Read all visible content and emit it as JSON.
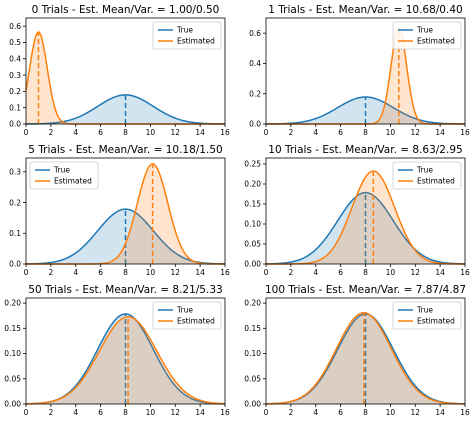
{
  "chart_data": [
    {
      "type": "area",
      "title": "0 Trials - Est. Mean/Var. = 1.00/0.50",
      "xlim": [
        0,
        16
      ],
      "ylim": [
        0,
        0.65
      ],
      "xticks": [
        0,
        2,
        4,
        6,
        8,
        10,
        12,
        14,
        16
      ],
      "yticks": [
        0.0,
        0.1,
        0.2,
        0.3,
        0.4,
        0.5,
        0.6
      ],
      "legend": "top-right",
      "series": [
        {
          "name": "True",
          "distribution": "normal",
          "mean": 8,
          "variance": 5,
          "color": "#1f77b4"
        },
        {
          "name": "Estimated",
          "distribution": "normal",
          "mean": 1.0,
          "variance": 0.5,
          "color": "#ff7f0e"
        }
      ]
    },
    {
      "type": "area",
      "title": "1 Trials - Est. Mean/Var. = 10.68/0.40",
      "xlim": [
        0,
        16
      ],
      "ylim": [
        0,
        0.7
      ],
      "xticks": [
        0,
        2,
        4,
        6,
        8,
        10,
        12,
        14,
        16
      ],
      "yticks": [
        0.0,
        0.2,
        0.4,
        0.6
      ],
      "legend": "top-right",
      "series": [
        {
          "name": "True",
          "distribution": "normal",
          "mean": 8,
          "variance": 5,
          "color": "#1f77b4"
        },
        {
          "name": "Estimated",
          "distribution": "normal",
          "mean": 10.68,
          "variance": 0.4,
          "color": "#ff7f0e"
        }
      ]
    },
    {
      "type": "area",
      "title": "5 Trials - Est. Mean/Var. = 10.18/1.50",
      "xlim": [
        0,
        16
      ],
      "ylim": [
        0,
        0.345
      ],
      "xticks": [
        0,
        2,
        4,
        6,
        8,
        10,
        12,
        14,
        16
      ],
      "yticks": [
        0.0,
        0.1,
        0.2,
        0.3
      ],
      "legend": "top-left",
      "series": [
        {
          "name": "True",
          "distribution": "normal",
          "mean": 8,
          "variance": 5,
          "color": "#1f77b4"
        },
        {
          "name": "Estimated",
          "distribution": "normal",
          "mean": 10.18,
          "variance": 1.5,
          "color": "#ff7f0e"
        }
      ]
    },
    {
      "type": "area",
      "title": "10 Trials - Est. Mean/Var. = 8.63/2.95",
      "xlim": [
        0,
        16
      ],
      "ylim": [
        0,
        0.265
      ],
      "xticks": [
        0,
        2,
        4,
        6,
        8,
        10,
        12,
        14,
        16
      ],
      "yticks": [
        0.0,
        0.05,
        0.1,
        0.15,
        0.2,
        0.25
      ],
      "yticklabels": [
        "0.00",
        "0.05",
        "0.10",
        "0.15",
        "0.20",
        "0.25"
      ],
      "legend": "top-right",
      "series": [
        {
          "name": "True",
          "distribution": "normal",
          "mean": 8,
          "variance": 5,
          "color": "#1f77b4"
        },
        {
          "name": "Estimated",
          "distribution": "normal",
          "mean": 8.63,
          "variance": 2.95,
          "color": "#ff7f0e"
        }
      ]
    },
    {
      "type": "area",
      "title": "50 Trials - Est. Mean/Var. = 8.21/5.33",
      "xlim": [
        0,
        16
      ],
      "ylim": [
        0,
        0.21
      ],
      "xticks": [
        0,
        2,
        4,
        6,
        8,
        10,
        12,
        14,
        16
      ],
      "yticks": [
        0.0,
        0.05,
        0.1,
        0.15,
        0.2
      ],
      "yticklabels": [
        "0.00",
        "0.05",
        "0.10",
        "0.15",
        "0.20"
      ],
      "legend": "top-right",
      "series": [
        {
          "name": "True",
          "distribution": "normal",
          "mean": 8,
          "variance": 5,
          "color": "#1f77b4"
        },
        {
          "name": "Estimated",
          "distribution": "normal",
          "mean": 8.21,
          "variance": 5.33,
          "color": "#ff7f0e"
        }
      ]
    },
    {
      "type": "area",
      "title": "100 Trials - Est. Mean/Var. = 7.87/4.87",
      "xlim": [
        0,
        16
      ],
      "ylim": [
        0,
        0.21
      ],
      "xticks": [
        0,
        2,
        4,
        6,
        8,
        10,
        12,
        14,
        16
      ],
      "yticks": [
        0.0,
        0.05,
        0.1,
        0.15,
        0.2
      ],
      "yticklabels": [
        "0.00",
        "0.05",
        "0.10",
        "0.15",
        "0.20"
      ],
      "legend": "top-right",
      "series": [
        {
          "name": "True",
          "distribution": "normal",
          "mean": 8,
          "variance": 5,
          "color": "#1f77b4"
        },
        {
          "name": "Estimated",
          "distribution": "normal",
          "mean": 7.87,
          "variance": 4.87,
          "color": "#ff7f0e"
        }
      ]
    }
  ]
}
